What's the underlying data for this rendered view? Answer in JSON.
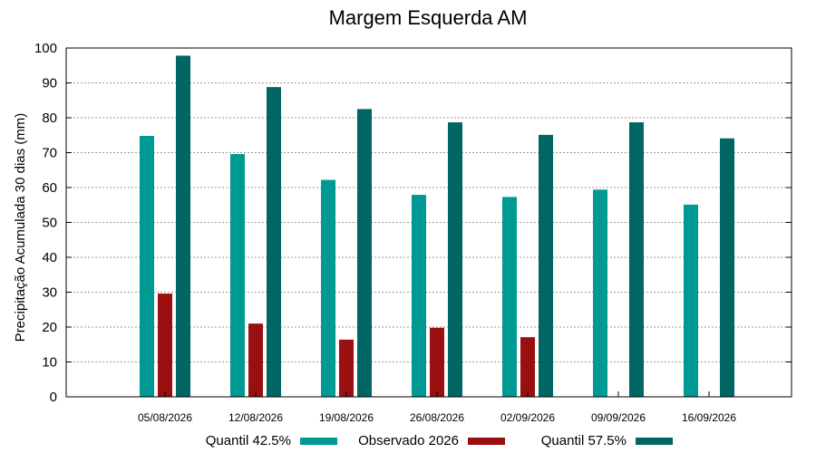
{
  "chart_data": {
    "type": "bar",
    "title": "Margem Esquerda AM",
    "xlabel": "",
    "ylabel": "Precipitação Acumulada 30 dias (mm)",
    "ylim": [
      0,
      100
    ],
    "yticks": [
      "0",
      "10",
      "20",
      "30",
      "40",
      "50",
      "60",
      "70",
      "80",
      "90",
      "100"
    ],
    "grid": true,
    "legend_position": "bottom",
    "categories": [
      "05/08/2026",
      "12/08/2026",
      "19/08/2026",
      "26/08/2026",
      "02/09/2026",
      "09/09/2026",
      "16/09/2026"
    ],
    "series": [
      {
        "name": "Quantil 42.5%",
        "color": "#009a94",
        "values": [
          74.8,
          69.6,
          62.2,
          57.9,
          57.3,
          59.4,
          55.1
        ]
      },
      {
        "name": "Observado 2026",
        "color": "#9a0f0f",
        "values": [
          29.6,
          21.0,
          16.4,
          19.8,
          17.1,
          null,
          null
        ]
      },
      {
        "name": "Quantil 57.5%",
        "color": "#006664",
        "values": [
          97.8,
          88.8,
          82.5,
          78.7,
          75.1,
          78.7,
          74.1
        ]
      }
    ]
  }
}
